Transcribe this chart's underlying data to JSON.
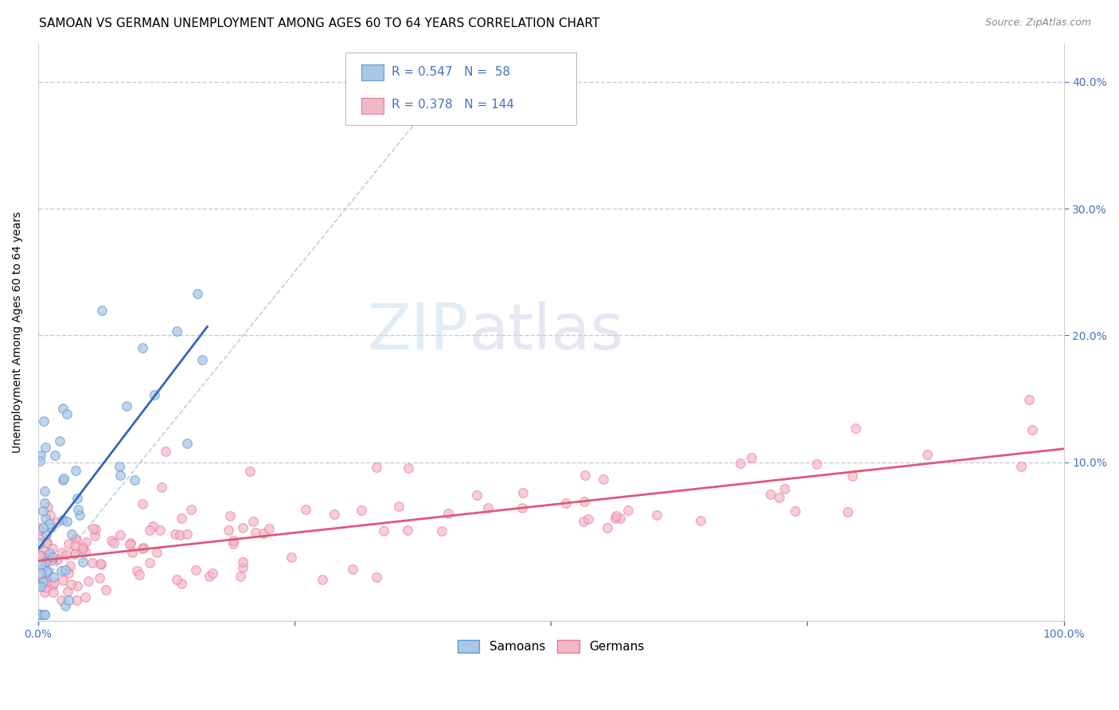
{
  "title": "SAMOAN VS GERMAN UNEMPLOYMENT AMONG AGES 60 TO 64 YEARS CORRELATION CHART",
  "source": "Source: ZipAtlas.com",
  "ylabel": "Unemployment Among Ages 60 to 64 years",
  "xlim": [
    0.0,
    1.0
  ],
  "ylim": [
    -0.025,
    0.43
  ],
  "samoans_color": "#a8c8e8",
  "samoans_edge": "#6699cc",
  "samoans_line_color": "#3366bb",
  "germans_color": "#f4b8c8",
  "germans_edge": "#e87a9a",
  "germans_line_color": "#e05878",
  "R_samoan": 0.547,
  "N_samoan": 58,
  "R_german": 0.378,
  "N_german": 144,
  "watermark_zip": "ZIP",
  "watermark_atlas": "atlas",
  "diag_line_color": "#aac4e0",
  "grid_color": "#cccccc",
  "background_color": "#ffffff",
  "tick_color": "#4472c4",
  "title_fontsize": 11,
  "axis_label_fontsize": 10,
  "tick_fontsize": 10
}
